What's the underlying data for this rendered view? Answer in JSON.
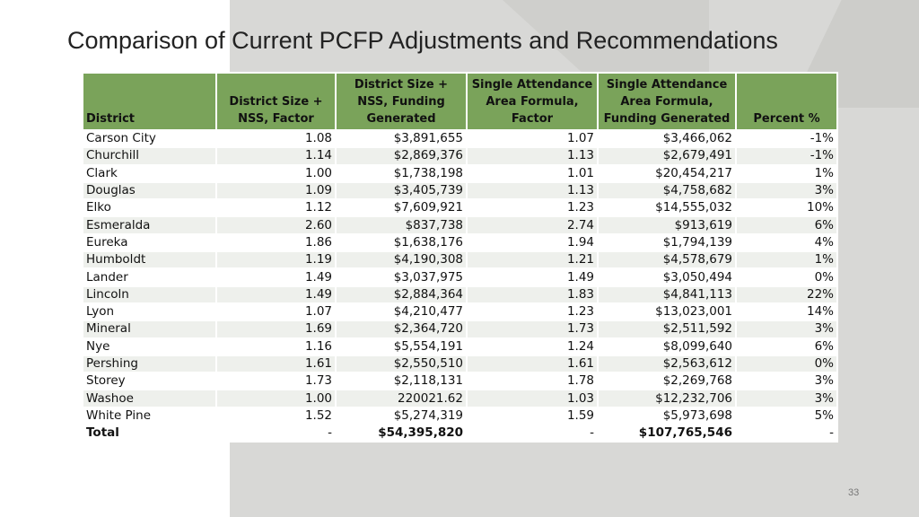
{
  "slide": {
    "title": "Comparison of Current PCFP Adjustments and Recommendations",
    "page_number": "33"
  },
  "table": {
    "headers": {
      "district": "District",
      "ds_factor": "District Size + NSS, Factor",
      "ds_funding": "District Size + NSS, Funding Generated",
      "saa_factor": "Single Attendance Area Formula, Factor",
      "saa_funding": "Single Attendance Area Formula, Funding Generated",
      "percent": "Percent %"
    },
    "rows": [
      {
        "district": "Carson City",
        "ds_factor": "1.08",
        "ds_funding": "$3,891,655",
        "saa_factor": "1.07",
        "saa_funding": "$3,466,062",
        "percent": "-1%"
      },
      {
        "district": "Churchill",
        "ds_factor": "1.14",
        "ds_funding": "$2,869,376",
        "saa_factor": "1.13",
        "saa_funding": "$2,679,491",
        "percent": "-1%"
      },
      {
        "district": "Clark",
        "ds_factor": "1.00",
        "ds_funding": "$1,738,198",
        "saa_factor": "1.01",
        "saa_funding": "$20,454,217",
        "percent": "1%"
      },
      {
        "district": "Douglas",
        "ds_factor": "1.09",
        "ds_funding": "$3,405,739",
        "saa_factor": "1.13",
        "saa_funding": "$4,758,682",
        "percent": "3%"
      },
      {
        "district": "Elko",
        "ds_factor": "1.12",
        "ds_funding": "$7,609,921",
        "saa_factor": "1.23",
        "saa_funding": "$14,555,032",
        "percent": "10%"
      },
      {
        "district": "Esmeralda",
        "ds_factor": "2.60",
        "ds_funding": "$837,738",
        "saa_factor": "2.74",
        "saa_funding": "$913,619",
        "percent": "6%"
      },
      {
        "district": "Eureka",
        "ds_factor": "1.86",
        "ds_funding": "$1,638,176",
        "saa_factor": "1.94",
        "saa_funding": "$1,794,139",
        "percent": "4%"
      },
      {
        "district": "Humboldt",
        "ds_factor": "1.19",
        "ds_funding": "$4,190,308",
        "saa_factor": "1.21",
        "saa_funding": "$4,578,679",
        "percent": "1%"
      },
      {
        "district": "Lander",
        "ds_factor": "1.49",
        "ds_funding": "$3,037,975",
        "saa_factor": "1.49",
        "saa_funding": "$3,050,494",
        "percent": "0%"
      },
      {
        "district": "Lincoln",
        "ds_factor": "1.49",
        "ds_funding": "$2,884,364",
        "saa_factor": "1.83",
        "saa_funding": "$4,841,113",
        "percent": "22%"
      },
      {
        "district": "Lyon",
        "ds_factor": "1.07",
        "ds_funding": "$4,210,477",
        "saa_factor": "1.23",
        "saa_funding": "$13,023,001",
        "percent": "14%"
      },
      {
        "district": "Mineral",
        "ds_factor": "1.69",
        "ds_funding": "$2,364,720",
        "saa_factor": "1.73",
        "saa_funding": "$2,511,592",
        "percent": "3%"
      },
      {
        "district": "Nye",
        "ds_factor": "1.16",
        "ds_funding": "$5,554,191",
        "saa_factor": "1.24",
        "saa_funding": "$8,099,640",
        "percent": "6%"
      },
      {
        "district": "Pershing",
        "ds_factor": "1.61",
        "ds_funding": "$2,550,510",
        "saa_factor": "1.61",
        "saa_funding": "$2,563,612",
        "percent": "0%"
      },
      {
        "district": "Storey",
        "ds_factor": "1.73",
        "ds_funding": "$2,118,131",
        "saa_factor": "1.78",
        "saa_funding": "$2,269,768",
        "percent": "3%"
      },
      {
        "district": "Washoe",
        "ds_factor": "1.00",
        "ds_funding": "220021.62",
        "saa_factor": "1.03",
        "saa_funding": "$12,232,706",
        "percent": "3%"
      },
      {
        "district": "White Pine",
        "ds_factor": "1.52",
        "ds_funding": "$5,274,319",
        "saa_factor": "1.59",
        "saa_funding": "$5,973,698",
        "percent": "5%"
      }
    ],
    "total": {
      "district": "Total",
      "ds_factor": "-",
      "ds_funding": "$54,395,820",
      "saa_factor": "-",
      "saa_funding": "$107,765,546",
      "percent": "-"
    }
  },
  "colors": {
    "header_bg": "#7aa35a",
    "band": "#eef0ec",
    "background_shape": "#d8d8d6"
  }
}
